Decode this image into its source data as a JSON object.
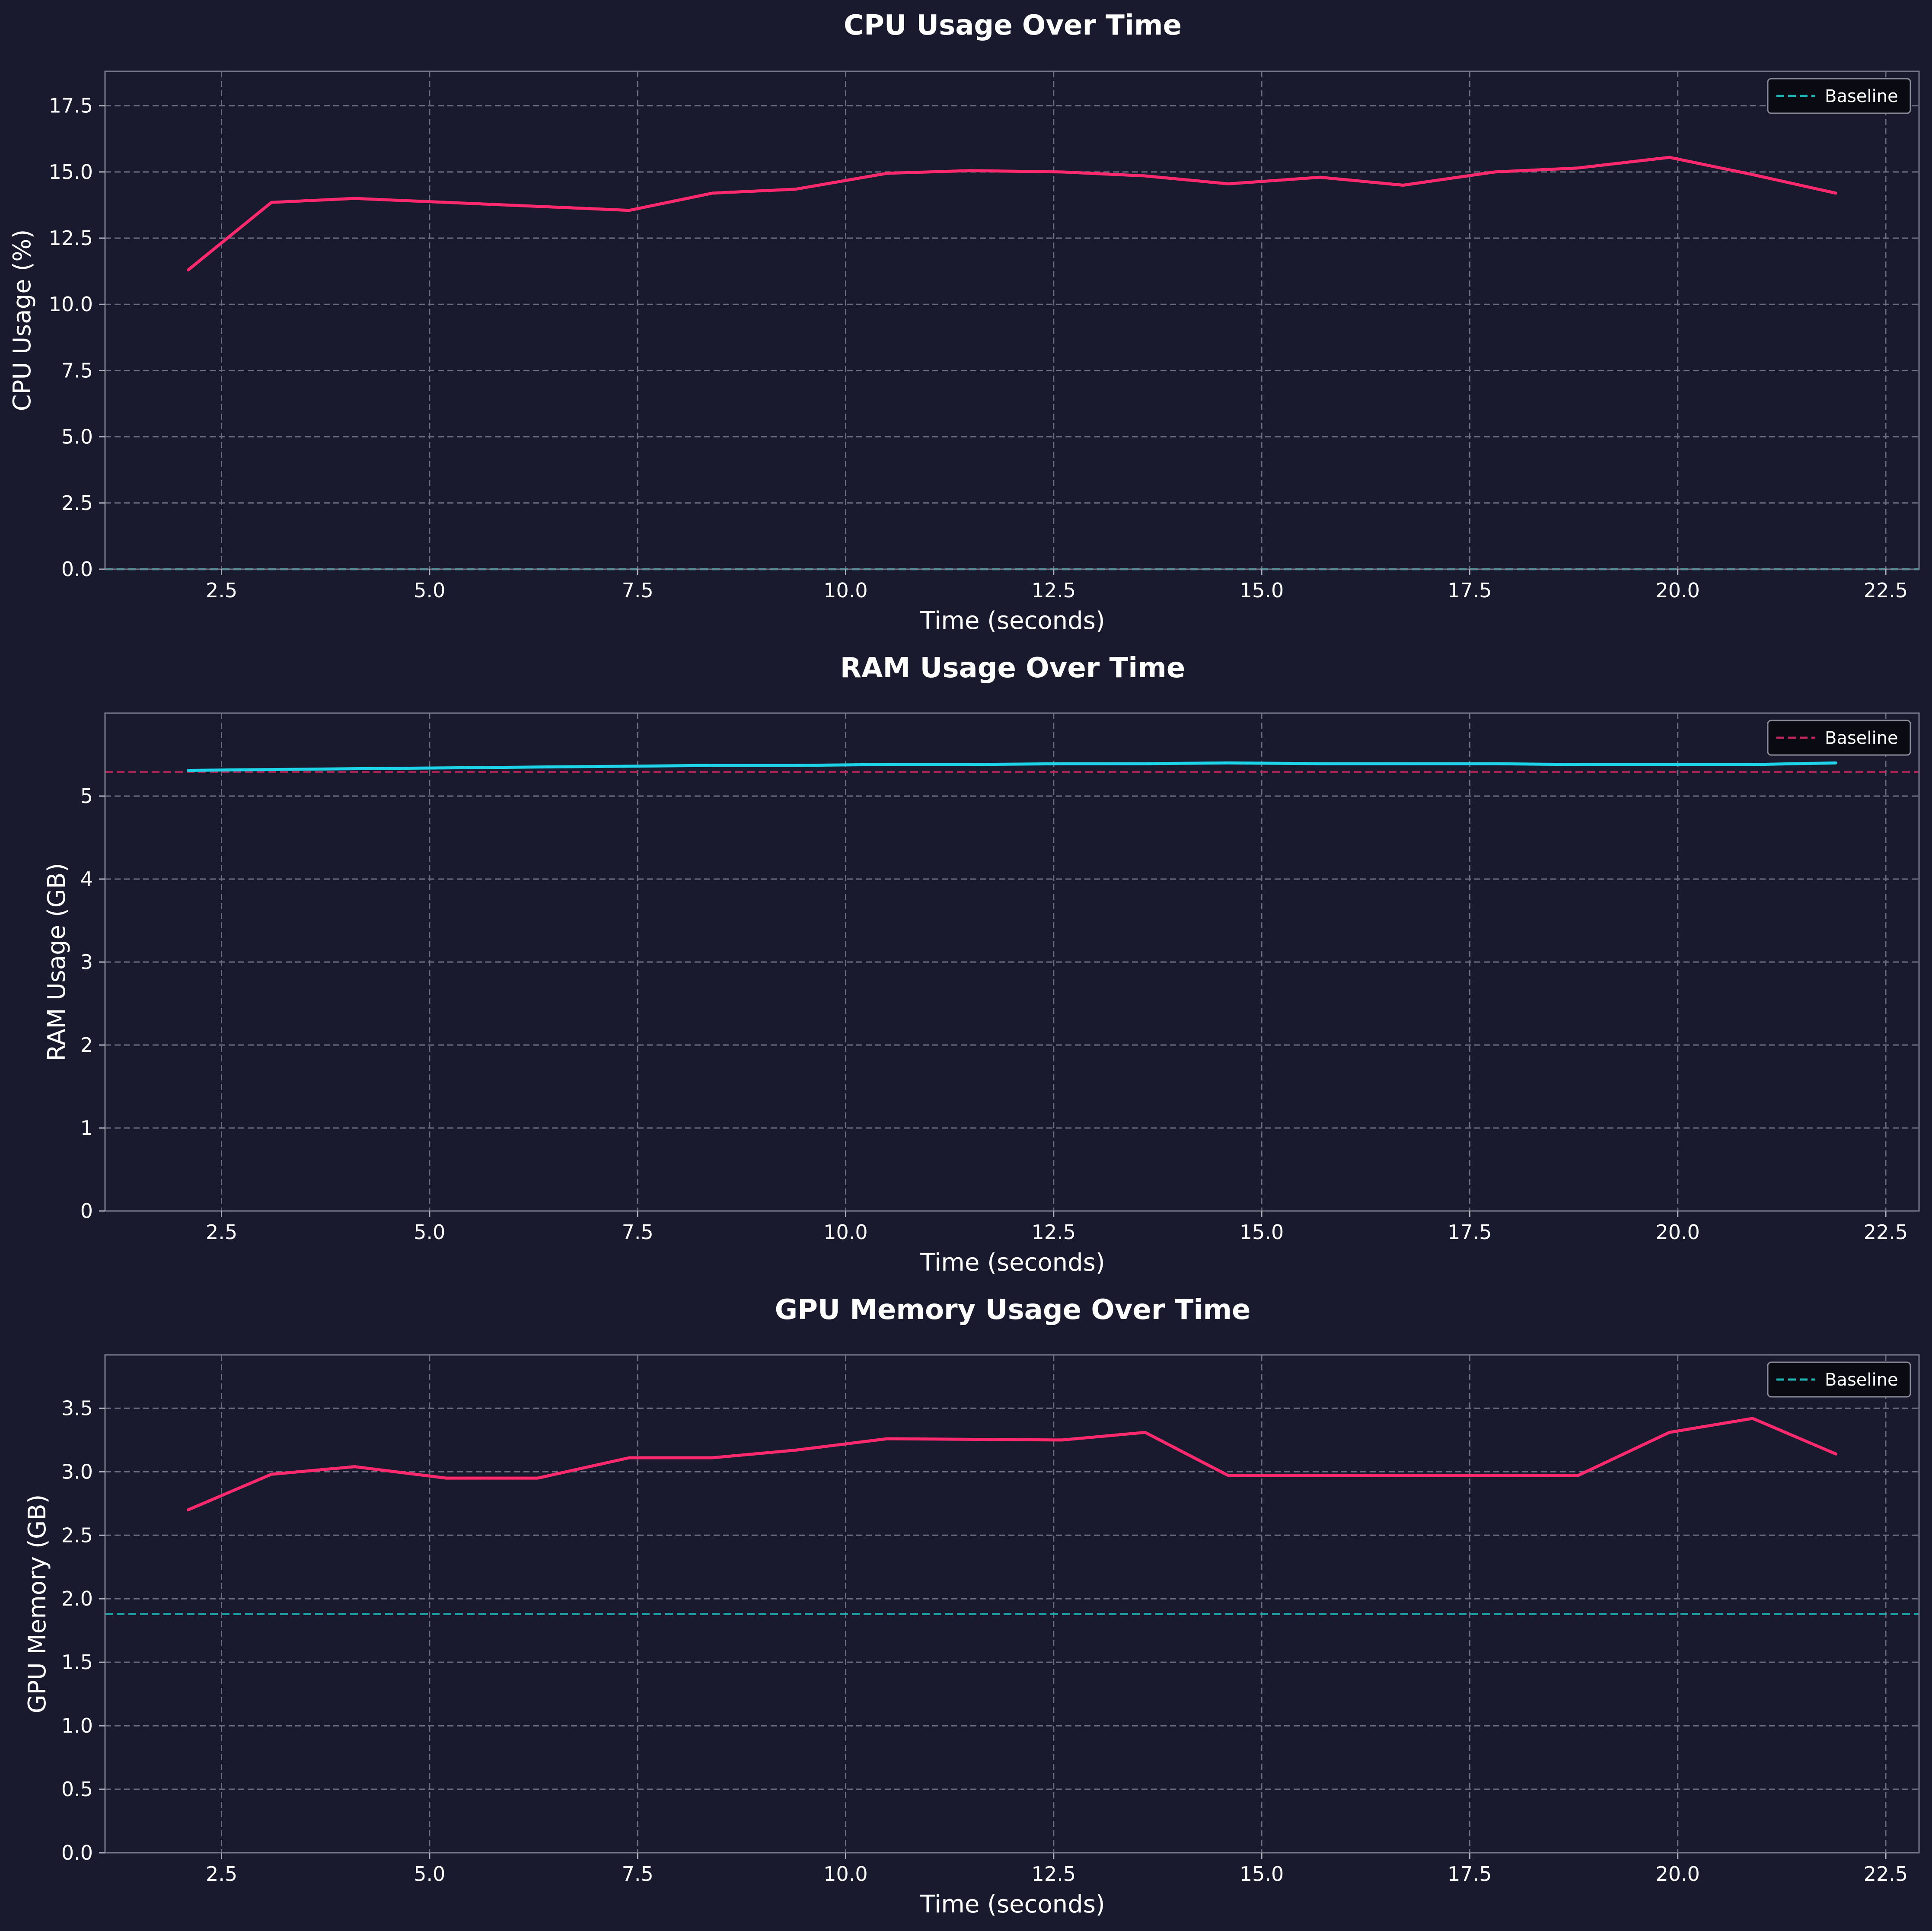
{
  "colors": {
    "background": "#191a2e",
    "pink": "#ff2a6d",
    "cyan": "#1ed4e8",
    "teal": "#1fb5b5",
    "baseline_pink": "#c0285e"
  },
  "chart_data": [
    {
      "type": "line",
      "title": "CPU Usage Over Time",
      "xlabel": "Time (seconds)",
      "ylabel": "CPU Usage (%)",
      "xlim": [
        1.1,
        22.9
      ],
      "ylim": [
        0,
        18.8
      ],
      "xticks": [
        2.5,
        5.0,
        7.5,
        10.0,
        12.5,
        15.0,
        17.5,
        20.0,
        22.5
      ],
      "yticks": [
        0.0,
        2.5,
        5.0,
        7.5,
        10.0,
        12.5,
        15.0,
        17.5
      ],
      "xtick_labels": [
        "2.5",
        "5.0",
        "7.5",
        "10.0",
        "12.5",
        "15.0",
        "17.5",
        "20.0",
        "22.5"
      ],
      "ytick_labels": [
        "0.0",
        "2.5",
        "5.0",
        "7.5",
        "10.0",
        "12.5",
        "15.0",
        "17.5"
      ],
      "grid": true,
      "legend_position": "top-right",
      "line_color": "#ff2a6d",
      "baseline_color": "#1fb5b5",
      "series": [
        {
          "x": [
            2.1,
            3.1,
            4.1,
            5.2,
            6.3,
            7.4,
            8.4,
            9.4,
            10.5,
            11.5,
            12.6,
            13.6,
            14.6,
            15.7,
            16.7,
            17.8,
            18.8,
            19.9,
            20.9,
            21.9
          ],
          "values": [
            11.3,
            13.85,
            14.0,
            13.85,
            13.7,
            13.55,
            14.2,
            14.35,
            14.95,
            15.05,
            15.0,
            14.85,
            14.55,
            14.8,
            14.5,
            15.0,
            15.15,
            15.55,
            14.9,
            14.2
          ]
        }
      ],
      "baseline": {
        "name": "Baseline",
        "value": 0.0
      }
    },
    {
      "type": "line",
      "title": "RAM Usage Over Time",
      "xlabel": "Time (seconds)",
      "ylabel": "RAM Usage (GB)",
      "xlim": [
        1.1,
        22.9
      ],
      "ylim": [
        0,
        6.0
      ],
      "xticks": [
        2.5,
        5.0,
        7.5,
        10.0,
        12.5,
        15.0,
        17.5,
        20.0,
        22.5
      ],
      "yticks": [
        0,
        1,
        2,
        3,
        4,
        5
      ],
      "xtick_labels": [
        "2.5",
        "5.0",
        "7.5",
        "10.0",
        "12.5",
        "15.0",
        "17.5",
        "20.0",
        "22.5"
      ],
      "ytick_labels": [
        "0",
        "1",
        "2",
        "3",
        "4",
        "5"
      ],
      "grid": true,
      "legend_position": "top-right",
      "line_color": "#1ed4e8",
      "baseline_color": "#c0285e",
      "series": [
        {
          "x": [
            2.1,
            3.1,
            4.1,
            5.2,
            6.3,
            7.4,
            8.4,
            9.4,
            10.5,
            11.5,
            12.6,
            13.6,
            14.6,
            15.7,
            16.7,
            17.8,
            18.8,
            19.9,
            20.9,
            21.9
          ],
          "values": [
            5.31,
            5.32,
            5.33,
            5.34,
            5.35,
            5.36,
            5.37,
            5.37,
            5.38,
            5.38,
            5.39,
            5.39,
            5.4,
            5.39,
            5.39,
            5.39,
            5.38,
            5.38,
            5.38,
            5.4
          ]
        }
      ],
      "baseline": {
        "name": "Baseline",
        "value": 5.29
      }
    },
    {
      "type": "line",
      "title": "GPU Memory Usage Over Time",
      "xlabel": "Time (seconds)",
      "ylabel": "GPU Memory (GB)",
      "xlim": [
        1.1,
        22.9
      ],
      "ylim": [
        0,
        3.92
      ],
      "xticks": [
        2.5,
        5.0,
        7.5,
        10.0,
        12.5,
        15.0,
        17.5,
        20.0,
        22.5
      ],
      "yticks": [
        0.0,
        0.5,
        1.0,
        1.5,
        2.0,
        2.5,
        3.0,
        3.5
      ],
      "xtick_labels": [
        "2.5",
        "5.0",
        "7.5",
        "10.0",
        "12.5",
        "15.0",
        "17.5",
        "20.0",
        "22.5"
      ],
      "ytick_labels": [
        "0.0",
        "0.5",
        "1.0",
        "1.5",
        "2.0",
        "2.5",
        "3.0",
        "3.5"
      ],
      "grid": true,
      "legend_position": "top-right",
      "line_color": "#ff2a6d",
      "baseline_color": "#1fb5b5",
      "series": [
        {
          "x": [
            2.1,
            3.1,
            4.1,
            5.2,
            6.3,
            7.4,
            8.4,
            9.4,
            10.5,
            11.5,
            12.6,
            13.6,
            14.6,
            15.7,
            16.7,
            17.8,
            18.8,
            19.9,
            20.9,
            21.9
          ],
          "values": [
            2.7,
            2.98,
            3.04,
            2.95,
            2.95,
            3.11,
            3.11,
            3.17,
            3.26,
            3.255,
            3.25,
            3.31,
            2.97,
            2.97,
            2.97,
            2.97,
            2.97,
            3.31,
            3.42,
            3.14
          ]
        }
      ],
      "baseline": {
        "name": "Baseline",
        "value": 1.88
      }
    }
  ]
}
